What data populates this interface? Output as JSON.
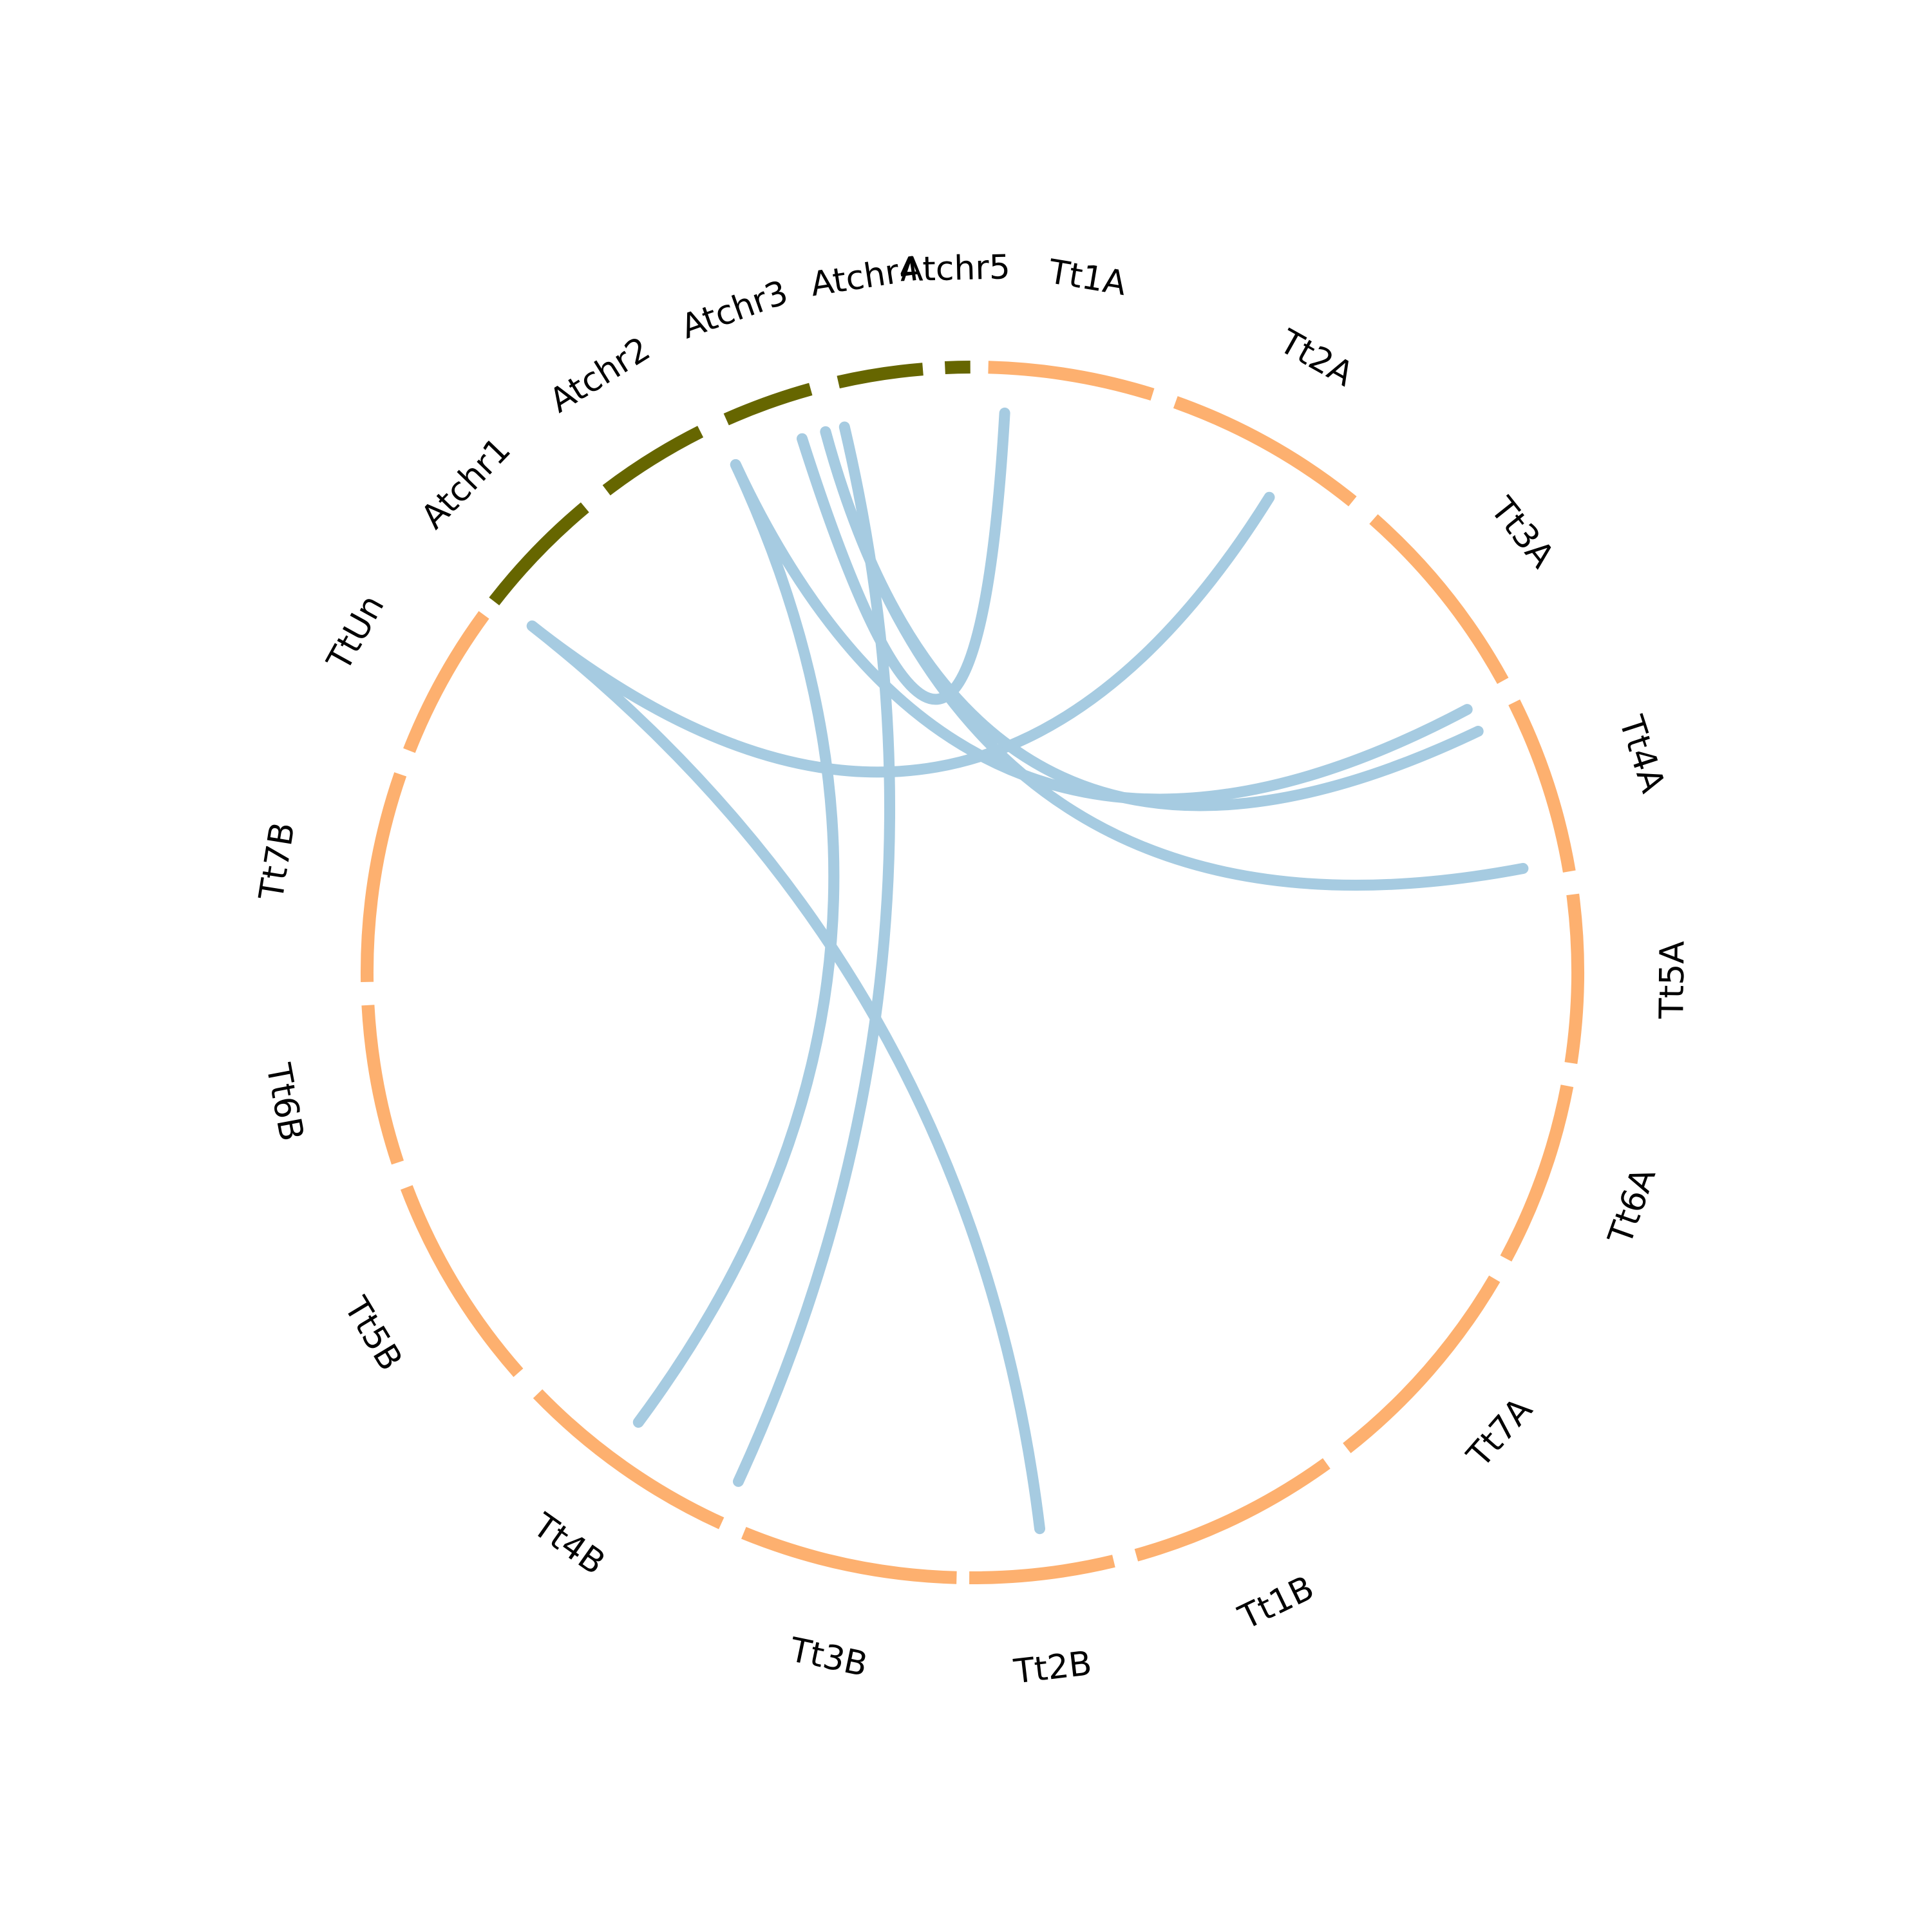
{
  "diagram": {
    "type": "circos",
    "colors": {
      "wheat": "#FDB06F",
      "arabidopsis": "#666600",
      "link": "#A6CBE1"
    },
    "segments": [
      {
        "id": "Tt1A",
        "label": "Tt1A",
        "group": "wheat"
      },
      {
        "id": "Tt2A",
        "label": "Tt2A",
        "group": "wheat"
      },
      {
        "id": "Tt3A",
        "label": "Tt3A",
        "group": "wheat"
      },
      {
        "id": "Tt4A",
        "label": "Tt4A",
        "group": "wheat"
      },
      {
        "id": "Tt5A",
        "label": "Tt5A",
        "group": "wheat"
      },
      {
        "id": "Tt6A",
        "label": "Tt6A",
        "group": "wheat"
      },
      {
        "id": "Tt7A",
        "label": "Tt7A",
        "group": "wheat"
      },
      {
        "id": "Tt1B",
        "label": "Tt1B",
        "group": "wheat"
      },
      {
        "id": "Tt2B",
        "label": "Tt2B",
        "group": "wheat"
      },
      {
        "id": "Tt3B",
        "label": "Tt3B",
        "group": "wheat"
      },
      {
        "id": "Tt4B",
        "label": "Tt4B",
        "group": "wheat"
      },
      {
        "id": "Tt5B",
        "label": "Tt5B",
        "group": "wheat"
      },
      {
        "id": "Tt6B",
        "label": "Tt6B",
        "group": "wheat"
      },
      {
        "id": "Tt7B",
        "label": "Tt7B",
        "group": "wheat"
      },
      {
        "id": "TtUn",
        "label": "TtUn",
        "group": "wheat"
      },
      {
        "id": "Atchr1",
        "label": "Atchr1",
        "group": "arabidopsis"
      },
      {
        "id": "Atchr2",
        "label": "Atchr2",
        "group": "arabidopsis"
      },
      {
        "id": "Atchr3",
        "label": "Atchr3",
        "group": "arabidopsis"
      },
      {
        "id": "Atchr4",
        "label": "Atchr4",
        "group": "arabidopsis"
      },
      {
        "id": "Atchr5",
        "label": "Atchr5",
        "group": "arabidopsis"
      }
    ],
    "links": [
      {
        "from": "Atchr5",
        "to": "Tt1A"
      },
      {
        "from": "Atchr1",
        "to": "Tt2A"
      },
      {
        "from": "Atchr1",
        "to": "Tt2B"
      },
      {
        "from": "Atchr3",
        "to": "Tt3A"
      },
      {
        "from": "Atchr3",
        "to": "Tt4B"
      },
      {
        "from": "Atchr4",
        "to": "Tt3A"
      },
      {
        "from": "Atchr4",
        "to": "Tt4A"
      },
      {
        "from": "Atchr4",
        "to": "Tt3B"
      }
    ]
  }
}
